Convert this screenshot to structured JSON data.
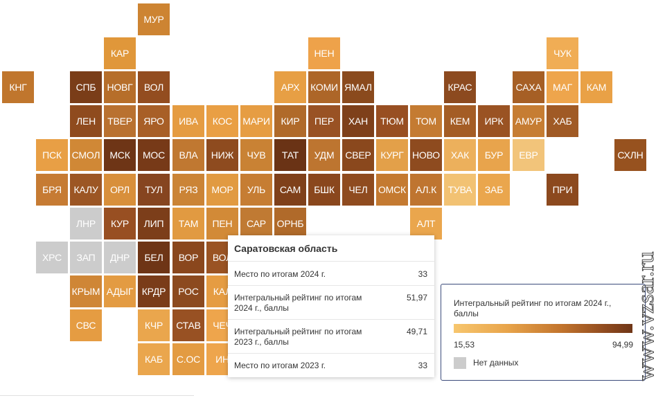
{
  "map": {
    "tiles": [
      {
        "label": "МУР",
        "col": 4,
        "row": 0,
        "color": "#cd8432"
      },
      {
        "label": "КАР",
        "col": 3,
        "row": 1,
        "color": "#e0973a"
      },
      {
        "label": "НЕН",
        "col": 9,
        "row": 1,
        "color": "#eea24a"
      },
      {
        "label": "ЧУК",
        "col": 16,
        "row": 1,
        "color": "#f0ad55"
      },
      {
        "label": "КНГ",
        "col": 0,
        "row": 2,
        "color": "#c0762d"
      },
      {
        "label": "СПБ",
        "col": 2,
        "row": 2,
        "color": "#7a3d18"
      },
      {
        "label": "НОВГ",
        "col": 3,
        "row": 2,
        "color": "#b66e2a"
      },
      {
        "label": "ВОЛ",
        "col": 4,
        "row": 2,
        "color": "#934d20"
      },
      {
        "label": "АРХ",
        "col": 8,
        "row": 2,
        "color": "#e79f44"
      },
      {
        "label": "КОМИ",
        "col": 9,
        "row": 2,
        "color": "#ad6628"
      },
      {
        "label": "ЯМАЛ",
        "col": 10,
        "row": 2,
        "color": "#8a4a1d"
      },
      {
        "label": "КРАС",
        "col": 13,
        "row": 2,
        "color": "#8c4a1f"
      },
      {
        "label": "САХА",
        "col": 15,
        "row": 2,
        "color": "#a65f25"
      },
      {
        "label": "МАГ",
        "col": 16,
        "row": 2,
        "color": "#eea54c"
      },
      {
        "label": "КАМ",
        "col": 17,
        "row": 2,
        "color": "#e9a146"
      },
      {
        "label": "ЛЕН",
        "col": 2,
        "row": 3,
        "color": "#8f4b1e"
      },
      {
        "label": "ТВЕР",
        "col": 3,
        "row": 3,
        "color": "#b97130"
      },
      {
        "label": "ЯРО",
        "col": 4,
        "row": 3,
        "color": "#a85f27"
      },
      {
        "label": "ИВА",
        "col": 5,
        "row": 3,
        "color": "#e59c42"
      },
      {
        "label": "КОС",
        "col": 6,
        "row": 3,
        "color": "#e99f44"
      },
      {
        "label": "МАРИ",
        "col": 7,
        "row": 3,
        "color": "#e69d43"
      },
      {
        "label": "КИР",
        "col": 8,
        "row": 3,
        "color": "#b06a2a"
      },
      {
        "label": "ПЕР",
        "col": 9,
        "row": 3,
        "color": "#995224"
      },
      {
        "label": "ХАН",
        "col": 10,
        "row": 3,
        "color": "#7e401a"
      },
      {
        "label": "ТЮМ",
        "col": 11,
        "row": 3,
        "color": "#984f22"
      },
      {
        "label": "ТОМ",
        "col": 12,
        "row": 3,
        "color": "#c47b32"
      },
      {
        "label": "КЕМ",
        "col": 13,
        "row": 3,
        "color": "#a45d25"
      },
      {
        "label": "ИРК",
        "col": 14,
        "row": 3,
        "color": "#9a5323"
      },
      {
        "label": "АМУР",
        "col": 15,
        "row": 3,
        "color": "#c67d33"
      },
      {
        "label": "ХАБ",
        "col": 16,
        "row": 3,
        "color": "#a05a25"
      },
      {
        "label": "ПСК",
        "col": 1,
        "row": 4,
        "color": "#e89f45"
      },
      {
        "label": "СМОЛ",
        "col": 2,
        "row": 4,
        "color": "#d08836"
      },
      {
        "label": "МСК",
        "col": 3,
        "row": 4,
        "color": "#6e3516"
      },
      {
        "label": "МОС",
        "col": 4,
        "row": 4,
        "color": "#773a18"
      },
      {
        "label": "ВЛА",
        "col": 5,
        "row": 4,
        "color": "#c07831"
      },
      {
        "label": "НИЖ",
        "col": 6,
        "row": 4,
        "color": "#8e4b1f"
      },
      {
        "label": "ЧУВ",
        "col": 7,
        "row": 4,
        "color": "#c98234"
      },
      {
        "label": "ТАТ",
        "col": 8,
        "row": 4,
        "color": "#6a3315"
      },
      {
        "label": "УДМ",
        "col": 9,
        "row": 4,
        "color": "#bd7530"
      },
      {
        "label": "СВЕР",
        "col": 10,
        "row": 4,
        "color": "#8a481d"
      },
      {
        "label": "КУРГ",
        "col": 11,
        "row": 4,
        "color": "#e3a049"
      },
      {
        "label": "НОВО",
        "col": 12,
        "row": 4,
        "color": "#8e4b1f"
      },
      {
        "label": "ХАК",
        "col": 13,
        "row": 4,
        "color": "#ecb05c"
      },
      {
        "label": "БУР",
        "col": 14,
        "row": 4,
        "color": "#e8a44c"
      },
      {
        "label": "ЕВР",
        "col": 15,
        "row": 4,
        "color": "#f2c47a"
      },
      {
        "label": "СХЛН",
        "col": 18,
        "row": 4,
        "color": "#97521f"
      },
      {
        "label": "БРЯ",
        "col": 1,
        "row": 5,
        "color": "#c67b33"
      },
      {
        "label": "КАЛУ",
        "col": 2,
        "row": 5,
        "color": "#9c5624"
      },
      {
        "label": "ОРЛ",
        "col": 3,
        "row": 5,
        "color": "#d88f3b"
      },
      {
        "label": "ТУЛ",
        "col": 4,
        "row": 5,
        "color": "#864520"
      },
      {
        "label": "РЯЗ",
        "col": 5,
        "row": 5,
        "color": "#cb8436"
      },
      {
        "label": "МОР",
        "col": 6,
        "row": 5,
        "color": "#e19a41"
      },
      {
        "label": "УЛЬ",
        "col": 7,
        "row": 5,
        "color": "#c67d33"
      },
      {
        "label": "САМ",
        "col": 8,
        "row": 5,
        "color": "#7f401a"
      },
      {
        "label": "БШК",
        "col": 9,
        "row": 5,
        "color": "#8a471d"
      },
      {
        "label": "ЧЕЛ",
        "col": 10,
        "row": 5,
        "color": "#8f4b1f"
      },
      {
        "label": "ОМСК",
        "col": 11,
        "row": 5,
        "color": "#c47a31"
      },
      {
        "label": "АЛ.К",
        "col": 12,
        "row": 5,
        "color": "#bf7530"
      },
      {
        "label": "ТУВА",
        "col": 13,
        "row": 5,
        "color": "#f2c273"
      },
      {
        "label": "ЗАБ",
        "col": 14,
        "row": 5,
        "color": "#eaa64d"
      },
      {
        "label": "ПРИ",
        "col": 16,
        "row": 5,
        "color": "#8c491e"
      },
      {
        "label": "ЛНР",
        "col": 2,
        "row": 6,
        "color": "#cccccc",
        "nodata": true
      },
      {
        "label": "КУР",
        "col": 3,
        "row": 6,
        "color": "#984f22"
      },
      {
        "label": "ЛИП",
        "col": 4,
        "row": 6,
        "color": "#7c3e1a"
      },
      {
        "label": "ТАМ",
        "col": 5,
        "row": 6,
        "color": "#e19a41"
      },
      {
        "label": "ПЕН",
        "col": 6,
        "row": 6,
        "color": "#d28a37"
      },
      {
        "label": "САР",
        "col": 7,
        "row": 6,
        "color": "#c07a33",
        "selected": true
      },
      {
        "label": "ОРНБ",
        "col": 8,
        "row": 6,
        "color": "#b06a2a"
      },
      {
        "label": "АЛТ",
        "col": 12,
        "row": 6,
        "color": "#eaa64d"
      },
      {
        "label": "ХРС",
        "col": 1,
        "row": 7,
        "color": "#cccccc",
        "nodata": true
      },
      {
        "label": "ЗАП",
        "col": 2,
        "row": 7,
        "color": "#cccccc",
        "nodata": true
      },
      {
        "label": "ДНР",
        "col": 3,
        "row": 7,
        "color": "#cccccc",
        "nodata": true
      },
      {
        "label": "БЕЛ",
        "col": 4,
        "row": 7,
        "color": "#6e3516"
      },
      {
        "label": "ВОР",
        "col": 5,
        "row": 7,
        "color": "#8a471d"
      },
      {
        "label": "ВОЛ",
        "col": 6,
        "row": 7,
        "color": "#9a5323"
      },
      {
        "label": "КРЫМ",
        "col": 2,
        "row": 8,
        "color": "#cf8636"
      },
      {
        "label": "АДЫГ",
        "col": 3,
        "row": 8,
        "color": "#e39b42"
      },
      {
        "label": "КРДР",
        "col": 4,
        "row": 8,
        "color": "#7a3c19"
      },
      {
        "label": "РОС",
        "col": 5,
        "row": 8,
        "color": "#8c4a1f"
      },
      {
        "label": "КАЛ",
        "col": 6,
        "row": 8,
        "color": "#e59c42"
      },
      {
        "label": "СВС",
        "col": 2,
        "row": 9,
        "color": "#e59c42"
      },
      {
        "label": "КЧР",
        "col": 4,
        "row": 9,
        "color": "#eaa64d"
      },
      {
        "label": "СТАВ",
        "col": 5,
        "row": 9,
        "color": "#985123"
      },
      {
        "label": "ЧЕЧ",
        "col": 6,
        "row": 9,
        "color": "#eea54c"
      },
      {
        "label": "КАБ",
        "col": 4,
        "row": 10,
        "color": "#eaa64d"
      },
      {
        "label": "С.ОС",
        "col": 5,
        "row": 10,
        "color": "#e39b42"
      },
      {
        "label": "ИН",
        "col": 6,
        "row": 10,
        "color": "#eea54c"
      }
    ]
  },
  "tooltip": {
    "title": "Саратовская область",
    "rows": [
      {
        "label": "Место по итогам 2024 г.",
        "value": "33"
      },
      {
        "label": "Интегральный рейтинг по итогам 2024 г., баллы",
        "value": "51,97"
      },
      {
        "label": "Интегральный рейтинг по итогам 2023 г., баллы",
        "value": "49,71"
      },
      {
        "label": "Место по итогам 2023 г.",
        "value": "33"
      }
    ]
  },
  "legend": {
    "title": "Интегральный рейтинг по итогам 2024 г., баллы",
    "min_label": "15,53",
    "max_label": "94,99",
    "nodata_label": "Нет данных",
    "colors": {
      "low": "#f7c66e",
      "high": "#6f3617",
      "nodata": "#cccccc"
    }
  },
  "watermark": {
    "text": "www.vzsar.ru"
  }
}
